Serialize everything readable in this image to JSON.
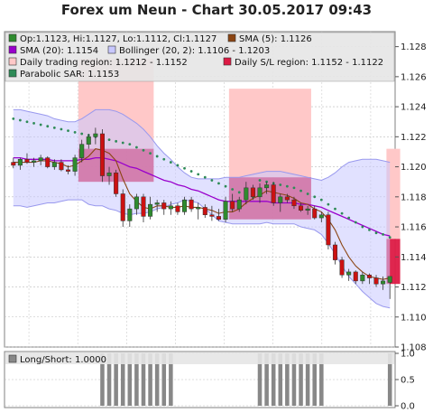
{
  "title": "Forex um Neun - Chart 30.05.2017 09:43",
  "colors": {
    "bull": "#2e8b2e",
    "bear": "#cc1111",
    "band_fill": "#c8c8ff",
    "band_line": "#9999ee",
    "sma20": "#9900cc",
    "sma5": "#8b4513",
    "sar": "#2e8b57",
    "trading_region": "#ffc8c8",
    "sl_region": "#dd1a44",
    "ls_bar": "#888888"
  },
  "chart_data": [
    {
      "type": "candlestick",
      "title": "Forex um Neun - Chart 30.05.2017 09:43",
      "ylim": [
        1.108,
        1.129
      ],
      "yticks": [
        "1.108",
        "1.110",
        "1.112",
        "1.114",
        "1.116",
        "1.118",
        "1.120",
        "1.122",
        "1.124",
        "1.126",
        "1.128"
      ],
      "grid": true,
      "legend_position": "top",
      "legend": [
        {
          "label": "Op:1.1123, Hi:1.1127, Lo:1.1112, Cl:1.1127",
          "swatch": "candle"
        },
        {
          "label": "SMA (5): 1.1126",
          "swatch": "sma5"
        },
        {
          "label": "SMA (20): 1.1154",
          "swatch": "sma20"
        },
        {
          "label": "Bollinger (20, 2): 1.1106 - 1.1203",
          "swatch": "bollinger"
        },
        {
          "label": "Daily trading region: 1.1212 - 1.1152",
          "swatch": "trading"
        },
        {
          "label": "Daily S/L region: 1.1152 - 1.1122",
          "swatch": "sl"
        },
        {
          "label": "Parabolic SAR: 1.1153",
          "swatch": "sar"
        }
      ],
      "candles": [
        {
          "o": 1.1203,
          "h": 1.1206,
          "l": 1.1199,
          "c": 1.1201
        },
        {
          "o": 1.1201,
          "h": 1.1206,
          "l": 1.1198,
          "c": 1.1205
        },
        {
          "o": 1.1205,
          "h": 1.1209,
          "l": 1.1202,
          "c": 1.1203
        },
        {
          "o": 1.1203,
          "h": 1.1206,
          "l": 1.12,
          "c": 1.1204
        },
        {
          "o": 1.1204,
          "h": 1.1208,
          "l": 1.1201,
          "c": 1.1206
        },
        {
          "o": 1.1206,
          "h": 1.1207,
          "l": 1.1199,
          "c": 1.12
        },
        {
          "o": 1.12,
          "h": 1.1205,
          "l": 1.1198,
          "c": 1.1203
        },
        {
          "o": 1.1203,
          "h": 1.1205,
          "l": 1.1197,
          "c": 1.1198
        },
        {
          "o": 1.1198,
          "h": 1.1201,
          "l": 1.1195,
          "c": 1.1197
        },
        {
          "o": 1.1197,
          "h": 1.1208,
          "l": 1.1194,
          "c": 1.1206
        },
        {
          "o": 1.1206,
          "h": 1.1218,
          "l": 1.1203,
          "c": 1.1215
        },
        {
          "o": 1.1215,
          "h": 1.1222,
          "l": 1.1212,
          "c": 1.122
        },
        {
          "o": 1.122,
          "h": 1.1226,
          "l": 1.1215,
          "c": 1.1222
        },
        {
          "o": 1.1222,
          "h": 1.1225,
          "l": 1.119,
          "c": 1.1194
        },
        {
          "o": 1.1194,
          "h": 1.12,
          "l": 1.1188,
          "c": 1.1196
        },
        {
          "o": 1.1196,
          "h": 1.1198,
          "l": 1.118,
          "c": 1.1182
        },
        {
          "o": 1.1182,
          "h": 1.1185,
          "l": 1.116,
          "c": 1.1164
        },
        {
          "o": 1.1164,
          "h": 1.1175,
          "l": 1.116,
          "c": 1.1172
        },
        {
          "o": 1.1172,
          "h": 1.1182,
          "l": 1.1168,
          "c": 1.118
        },
        {
          "o": 1.118,
          "h": 1.1182,
          "l": 1.1163,
          "c": 1.1167
        },
        {
          "o": 1.1167,
          "h": 1.118,
          "l": 1.1165,
          "c": 1.1175
        },
        {
          "o": 1.1175,
          "h": 1.1178,
          "l": 1.117,
          "c": 1.1176
        },
        {
          "o": 1.1176,
          "h": 1.1178,
          "l": 1.1168,
          "c": 1.1172
        },
        {
          "o": 1.1172,
          "h": 1.1177,
          "l": 1.1168,
          "c": 1.1174
        },
        {
          "o": 1.1174,
          "h": 1.1176,
          "l": 1.1168,
          "c": 1.117
        },
        {
          "o": 1.117,
          "h": 1.118,
          "l": 1.1168,
          "c": 1.1178
        },
        {
          "o": 1.1178,
          "h": 1.118,
          "l": 1.117,
          "c": 1.1172
        },
        {
          "o": 1.1172,
          "h": 1.1176,
          "l": 1.1165,
          "c": 1.1173
        },
        {
          "o": 1.1173,
          "h": 1.1175,
          "l": 1.1166,
          "c": 1.1168
        },
        {
          "o": 1.1168,
          "h": 1.1174,
          "l": 1.1164,
          "c": 1.1167
        },
        {
          "o": 1.1167,
          "h": 1.1172,
          "l": 1.1164,
          "c": 1.1165
        },
        {
          "o": 1.1165,
          "h": 1.118,
          "l": 1.1163,
          "c": 1.1177
        },
        {
          "o": 1.1177,
          "h": 1.1182,
          "l": 1.117,
          "c": 1.1172
        },
        {
          "o": 1.1172,
          "h": 1.118,
          "l": 1.117,
          "c": 1.1178
        },
        {
          "o": 1.1178,
          "h": 1.119,
          "l": 1.1175,
          "c": 1.1186
        },
        {
          "o": 1.1186,
          "h": 1.1188,
          "l": 1.1178,
          "c": 1.118
        },
        {
          "o": 1.118,
          "h": 1.1189,
          "l": 1.1176,
          "c": 1.1186
        },
        {
          "o": 1.1186,
          "h": 1.119,
          "l": 1.1182,
          "c": 1.1188
        },
        {
          "o": 1.1188,
          "h": 1.119,
          "l": 1.1174,
          "c": 1.1176
        },
        {
          "o": 1.1176,
          "h": 1.1182,
          "l": 1.117,
          "c": 1.118
        },
        {
          "o": 1.118,
          "h": 1.1182,
          "l": 1.1176,
          "c": 1.1178
        },
        {
          "o": 1.1178,
          "h": 1.118,
          "l": 1.1172,
          "c": 1.1174
        },
        {
          "o": 1.1174,
          "h": 1.1176,
          "l": 1.117,
          "c": 1.1171
        },
        {
          "o": 1.1171,
          "h": 1.1174,
          "l": 1.1168,
          "c": 1.1172
        },
        {
          "o": 1.1172,
          "h": 1.1174,
          "l": 1.1165,
          "c": 1.1166
        },
        {
          "o": 1.1166,
          "h": 1.117,
          "l": 1.1163,
          "c": 1.1168
        },
        {
          "o": 1.1168,
          "h": 1.117,
          "l": 1.1145,
          "c": 1.1148
        },
        {
          "o": 1.1148,
          "h": 1.115,
          "l": 1.1135,
          "c": 1.1138
        },
        {
          "o": 1.1138,
          "h": 1.114,
          "l": 1.1126,
          "c": 1.1128
        },
        {
          "o": 1.1128,
          "h": 1.1132,
          "l": 1.1124,
          "c": 1.113
        },
        {
          "o": 1.113,
          "h": 1.1131,
          "l": 1.1122,
          "c": 1.1124
        },
        {
          "o": 1.1124,
          "h": 1.113,
          "l": 1.1122,
          "c": 1.1128
        },
        {
          "o": 1.1128,
          "h": 1.1129,
          "l": 1.1122,
          "c": 1.1126
        },
        {
          "o": 1.1126,
          "h": 1.1128,
          "l": 1.112,
          "c": 1.1122
        },
        {
          "o": 1.1122,
          "h": 1.1127,
          "l": 1.1118,
          "c": 1.1124
        },
        {
          "o": 1.1123,
          "h": 1.1127,
          "l": 1.1112,
          "c": 1.1127
        }
      ],
      "sma5": [
        1.1203,
        1.1203,
        1.1203,
        1.1203,
        1.1204,
        1.1204,
        1.1203,
        1.1202,
        1.12,
        1.1201,
        1.1204,
        1.1207,
        1.1212,
        1.1211,
        1.1209,
        1.1204,
        1.1192,
        1.1182,
        1.1177,
        1.1173,
        1.1172,
        1.1174,
        1.1174,
        1.1173,
        1.1173,
        1.1174,
        1.1173,
        1.1173,
        1.1172,
        1.1171,
        1.1169,
        1.117,
        1.117,
        1.1172,
        1.1176,
        1.1179,
        1.1181,
        1.1184,
        1.1183,
        1.1182,
        1.1181,
        1.1179,
        1.1176,
        1.1175,
        1.1172,
        1.117,
        1.1165,
        1.1158,
        1.1148,
        1.114,
        1.1134,
        1.113,
        1.1127,
        1.1126,
        1.1125,
        1.1126
      ],
      "sma20": [
        1.1206,
        1.1206,
        1.1205,
        1.1205,
        1.1205,
        1.1205,
        1.1204,
        1.1204,
        1.1204,
        1.1204,
        1.1205,
        1.1205,
        1.1206,
        1.1206,
        1.1205,
        1.1204,
        1.1202,
        1.12,
        1.1199,
        1.1197,
        1.1195,
        1.1193,
        1.1191,
        1.119,
        1.1188,
        1.1187,
        1.1185,
        1.1184,
        1.1182,
        1.118,
        1.1178,
        1.1177,
        1.1177,
        1.1177,
        1.1177,
        1.1177,
        1.1177,
        1.1177,
        1.1176,
        1.1176,
        1.1176,
        1.1176,
        1.1175,
        1.1175,
        1.1174,
        1.1173,
        1.1171,
        1.1169,
        1.1167,
        1.1165,
        1.1163,
        1.1161,
        1.1159,
        1.1157,
        1.1155,
        1.1154
      ],
      "bb_upper": [
        1.1238,
        1.1238,
        1.1237,
        1.1236,
        1.1235,
        1.1234,
        1.1232,
        1.1231,
        1.123,
        1.123,
        1.1232,
        1.1235,
        1.1238,
        1.1238,
        1.1238,
        1.1237,
        1.1235,
        1.1232,
        1.1229,
        1.1225,
        1.122,
        1.1214,
        1.1209,
        1.1205,
        1.12,
        1.1196,
        1.1193,
        1.1192,
        1.1192,
        1.1192,
        1.1192,
        1.1193,
        1.1193,
        1.1193,
        1.1194,
        1.1195,
        1.1196,
        1.1197,
        1.1197,
        1.1197,
        1.1196,
        1.1195,
        1.1194,
        1.1193,
        1.1192,
        1.1191,
        1.1193,
        1.1196,
        1.12,
        1.1203,
        1.1204,
        1.1205,
        1.1205,
        1.1205,
        1.1204,
        1.1203
      ],
      "bb_lower": [
        1.1174,
        1.1174,
        1.1173,
        1.1174,
        1.1175,
        1.1176,
        1.1176,
        1.1177,
        1.1178,
        1.1178,
        1.1178,
        1.1175,
        1.1174,
        1.1174,
        1.1172,
        1.1171,
        1.1169,
        1.1168,
        1.1169,
        1.1169,
        1.117,
        1.1172,
        1.1173,
        1.1175,
        1.1176,
        1.1178,
        1.1177,
        1.1176,
        1.1172,
        1.1168,
        1.1164,
        1.1163,
        1.1162,
        1.1162,
        1.1162,
        1.1162,
        1.1162,
        1.1163,
        1.1162,
        1.1162,
        1.1162,
        1.1162,
        1.116,
        1.1159,
        1.1158,
        1.1155,
        1.1149,
        1.1142,
        1.1134,
        1.1127,
        1.1122,
        1.1117,
        1.1113,
        1.1109,
        1.1107,
        1.1106
      ],
      "sar": [
        1.1232,
        1.1231,
        1.123,
        1.1229,
        1.1228,
        1.1227,
        1.1226,
        1.1225,
        1.1224,
        1.1223,
        1.1222,
        1.1221,
        1.122,
        1.1219,
        1.1218,
        1.1217,
        1.1216,
        1.1215,
        1.1213,
        1.1211,
        1.1209,
        1.1207,
        1.1205,
        1.1203,
        1.1201,
        1.1199,
        1.1197,
        1.1195,
        1.1193,
        1.1191,
        1.1189,
        1.1187,
        1.1185,
        1.1183,
        1.1181,
        1.118,
        1.1191,
        1.119,
        1.1189,
        1.1188,
        1.1187,
        1.1186,
        1.1184,
        1.1182,
        1.118,
        1.1178,
        1.1175,
        1.1172,
        1.1169,
        1.1166,
        1.1163,
        1.116,
        1.1158,
        1.1156,
        1.1155,
        1.1153
      ],
      "trading_regions": [
        {
          "from": 10,
          "to": 20,
          "high": 1.1272,
          "low": 1.1212
        },
        {
          "from": 32,
          "to": 43,
          "high": 1.1252,
          "low": 1.1193
        },
        {
          "from": 55,
          "to": 56,
          "high": 1.1212,
          "low": 1.1152
        }
      ],
      "sl_regions": [
        {
          "from": 10,
          "to": 20,
          "high": 1.1212,
          "low": 1.119
        },
        {
          "from": 32,
          "to": 43,
          "high": 1.1193,
          "low": 1.1165
        },
        {
          "from": 55,
          "to": 56,
          "high": 1.1152,
          "low": 1.1122
        }
      ]
    },
    {
      "type": "bar",
      "title": "",
      "legend": [
        {
          "label": "Long/Short: 1.0000"
        }
      ],
      "ylim": [
        0.0,
        1.0
      ],
      "yticks": [
        "0.0",
        "0.5",
        "1.0"
      ],
      "values": [
        0,
        0,
        0,
        0,
        0,
        0,
        0,
        0,
        0,
        0,
        0,
        0,
        0,
        1,
        1,
        1,
        1,
        1,
        1,
        1,
        1,
        1,
        1,
        1,
        0,
        0,
        0,
        0,
        0,
        0,
        0,
        0,
        0,
        0,
        0,
        0,
        1,
        1,
        1,
        1,
        1,
        1,
        1,
        1,
        1,
        1,
        0,
        0,
        0,
        0,
        0,
        0,
        0,
        0,
        0,
        1
      ]
    }
  ]
}
